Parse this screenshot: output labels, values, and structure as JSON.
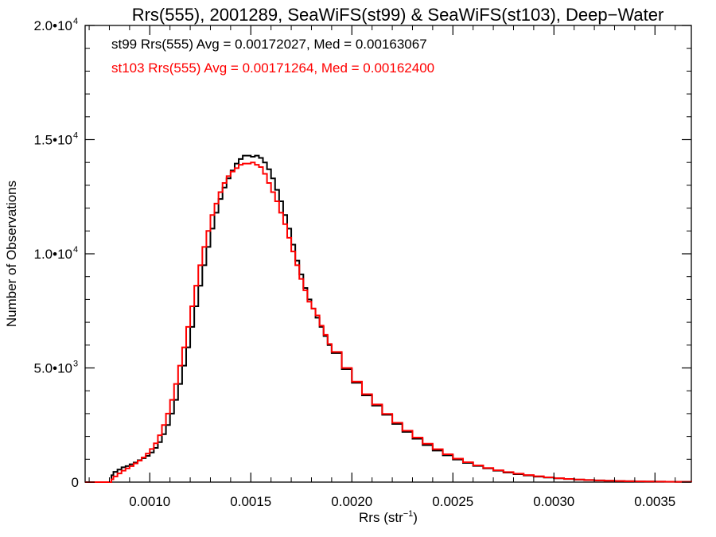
{
  "chart_data": {
    "type": "line",
    "step": true,
    "title": "Rrs(555), 2001289, SeaWiFS(st99) & SeaWiFS(st103), Deep−Water",
    "xlabel": "Rrs (str",
    "xlabel_sup": "−1",
    "xlabel_suffix": ")",
    "ylabel": "Number of Observations",
    "xlim": [
      0.00068,
      0.00368
    ],
    "ylim": [
      0,
      20000
    ],
    "grid": false,
    "x_ticks": [
      {
        "value": 0.001,
        "label": "0.0010"
      },
      {
        "value": 0.0015,
        "label": "0.0015"
      },
      {
        "value": 0.002,
        "label": "0.0020"
      },
      {
        "value": 0.0025,
        "label": "0.0025"
      },
      {
        "value": 0.003,
        "label": "0.0030"
      },
      {
        "value": 0.0035,
        "label": "0.0035"
      }
    ],
    "y_ticks": [
      {
        "value": 0,
        "label": "0",
        "sup": ""
      },
      {
        "value": 5000,
        "label": "5.0•10",
        "sup": "3"
      },
      {
        "value": 10000,
        "label": "1.0•10",
        "sup": "4"
      },
      {
        "value": 15000,
        "label": "1.5•10",
        "sup": "4"
      },
      {
        "value": 20000,
        "label": "2.0•10",
        "sup": "4"
      }
    ],
    "annotations": [
      {
        "text": "st99 Rrs(555) Avg = 0.00172027, Med = 0.00163067",
        "color": "#000000"
      },
      {
        "text": "st103 Rrs(555) Avg = 0.00171264, Med = 0.00162400",
        "color": "#ff0000"
      }
    ],
    "series": [
      {
        "color": "#000000",
        "x": [
          0.00068,
          0.0008,
          0.00081,
          0.00082,
          0.00084,
          0.00086,
          0.00088,
          0.0009,
          0.00092,
          0.00094,
          0.00096,
          0.00098,
          0.001,
          0.00102,
          0.00104,
          0.00106,
          0.00108,
          0.0011,
          0.00112,
          0.00114,
          0.00116,
          0.00118,
          0.0012,
          0.00122,
          0.00124,
          0.00126,
          0.00128,
          0.0013,
          0.00132,
          0.00134,
          0.00136,
          0.00138,
          0.0014,
          0.00142,
          0.00144,
          0.00146,
          0.00148,
          0.0015,
          0.00152,
          0.00154,
          0.00156,
          0.00158,
          0.0016,
          0.00162,
          0.00164,
          0.00166,
          0.00168,
          0.0017,
          0.00172,
          0.00174,
          0.00176,
          0.00178,
          0.0018,
          0.00182,
          0.00184,
          0.00186,
          0.00188,
          0.0019,
          0.00195,
          0.002,
          0.00205,
          0.0021,
          0.00215,
          0.0022,
          0.00225,
          0.0023,
          0.00235,
          0.0024,
          0.00245,
          0.0025,
          0.00255,
          0.0026,
          0.00265,
          0.0027,
          0.00275,
          0.0028,
          0.00285,
          0.0029,
          0.00295,
          0.003,
          0.00305,
          0.0031,
          0.00315,
          0.0032,
          0.00325,
          0.0033,
          0.00335,
          0.0034,
          0.00345,
          0.0035,
          0.00355,
          0.0036,
          0.00368
        ],
        "y": [
          0,
          0,
          300,
          450,
          550,
          650,
          700,
          780,
          860,
          960,
          1050,
          1150,
          1300,
          1500,
          1750,
          2100,
          2500,
          3000,
          3600,
          4300,
          5100,
          5900,
          6800,
          7700,
          8600,
          9500,
          10300,
          11100,
          11800,
          12400,
          12900,
          13300,
          13650,
          13950,
          14150,
          14300,
          14300,
          14250,
          14300,
          14200,
          14000,
          13700,
          13300,
          12800,
          12300,
          11700,
          11100,
          10400,
          9700,
          9100,
          8500,
          8000,
          7600,
          7200,
          6800,
          6400,
          6000,
          5650,
          4950,
          4350,
          3800,
          3350,
          2950,
          2550,
          2200,
          1900,
          1620,
          1380,
          1170,
          990,
          840,
          710,
          600,
          500,
          420,
          350,
          290,
          240,
          200,
          165,
          135,
          110,
          90,
          73,
          59,
          48,
          39,
          31,
          25,
          20,
          16,
          12,
          8
        ]
      },
      {
        "color": "#ff0000",
        "x": [
          0.00068,
          0.0008,
          0.00081,
          0.00082,
          0.00084,
          0.00086,
          0.00088,
          0.0009,
          0.00092,
          0.00094,
          0.00096,
          0.00098,
          0.001,
          0.00102,
          0.00104,
          0.00106,
          0.00108,
          0.0011,
          0.00112,
          0.00114,
          0.00116,
          0.00118,
          0.0012,
          0.00122,
          0.00124,
          0.00126,
          0.00128,
          0.0013,
          0.00132,
          0.00134,
          0.00136,
          0.00138,
          0.0014,
          0.00142,
          0.00144,
          0.00146,
          0.00148,
          0.0015,
          0.00152,
          0.00154,
          0.00156,
          0.00158,
          0.0016,
          0.00162,
          0.00164,
          0.00166,
          0.00168,
          0.0017,
          0.00172,
          0.00174,
          0.00176,
          0.00178,
          0.0018,
          0.00182,
          0.00184,
          0.00186,
          0.00188,
          0.0019,
          0.00195,
          0.002,
          0.00205,
          0.0021,
          0.00215,
          0.0022,
          0.00225,
          0.0023,
          0.00235,
          0.0024,
          0.00245,
          0.0025,
          0.00255,
          0.0026,
          0.00265,
          0.0027,
          0.00275,
          0.0028,
          0.00285,
          0.0029,
          0.00295,
          0.003,
          0.00305,
          0.0031,
          0.00315,
          0.0032,
          0.00325,
          0.0033,
          0.00335,
          0.0034,
          0.00345,
          0.0035,
          0.00355,
          0.0036,
          0.00368
        ],
        "y": [
          0,
          0,
          120,
          250,
          380,
          500,
          600,
          700,
          820,
          940,
          1080,
          1250,
          1450,
          1700,
          2050,
          2500,
          3000,
          3600,
          4300,
          5100,
          5900,
          6800,
          7700,
          8600,
          9500,
          10300,
          11000,
          11700,
          12200,
          12700,
          13100,
          13400,
          13600,
          13750,
          13900,
          13950,
          13950,
          14000,
          13900,
          13800,
          13500,
          13100,
          12700,
          12300,
          11800,
          11300,
          10700,
          10100,
          9500,
          8900,
          8400,
          7900,
          7600,
          7300,
          6850,
          6450,
          6050,
          5700,
          5000,
          4400,
          3850,
          3400,
          2990,
          2600,
          2250,
          1950,
          1680,
          1440,
          1220,
          1030,
          870,
          730,
          620,
          520,
          440,
          370,
          310,
          255,
          210,
          170,
          140,
          115,
          93,
          76,
          61,
          49,
          40,
          32,
          26,
          20,
          16,
          12,
          8
        ]
      }
    ]
  }
}
